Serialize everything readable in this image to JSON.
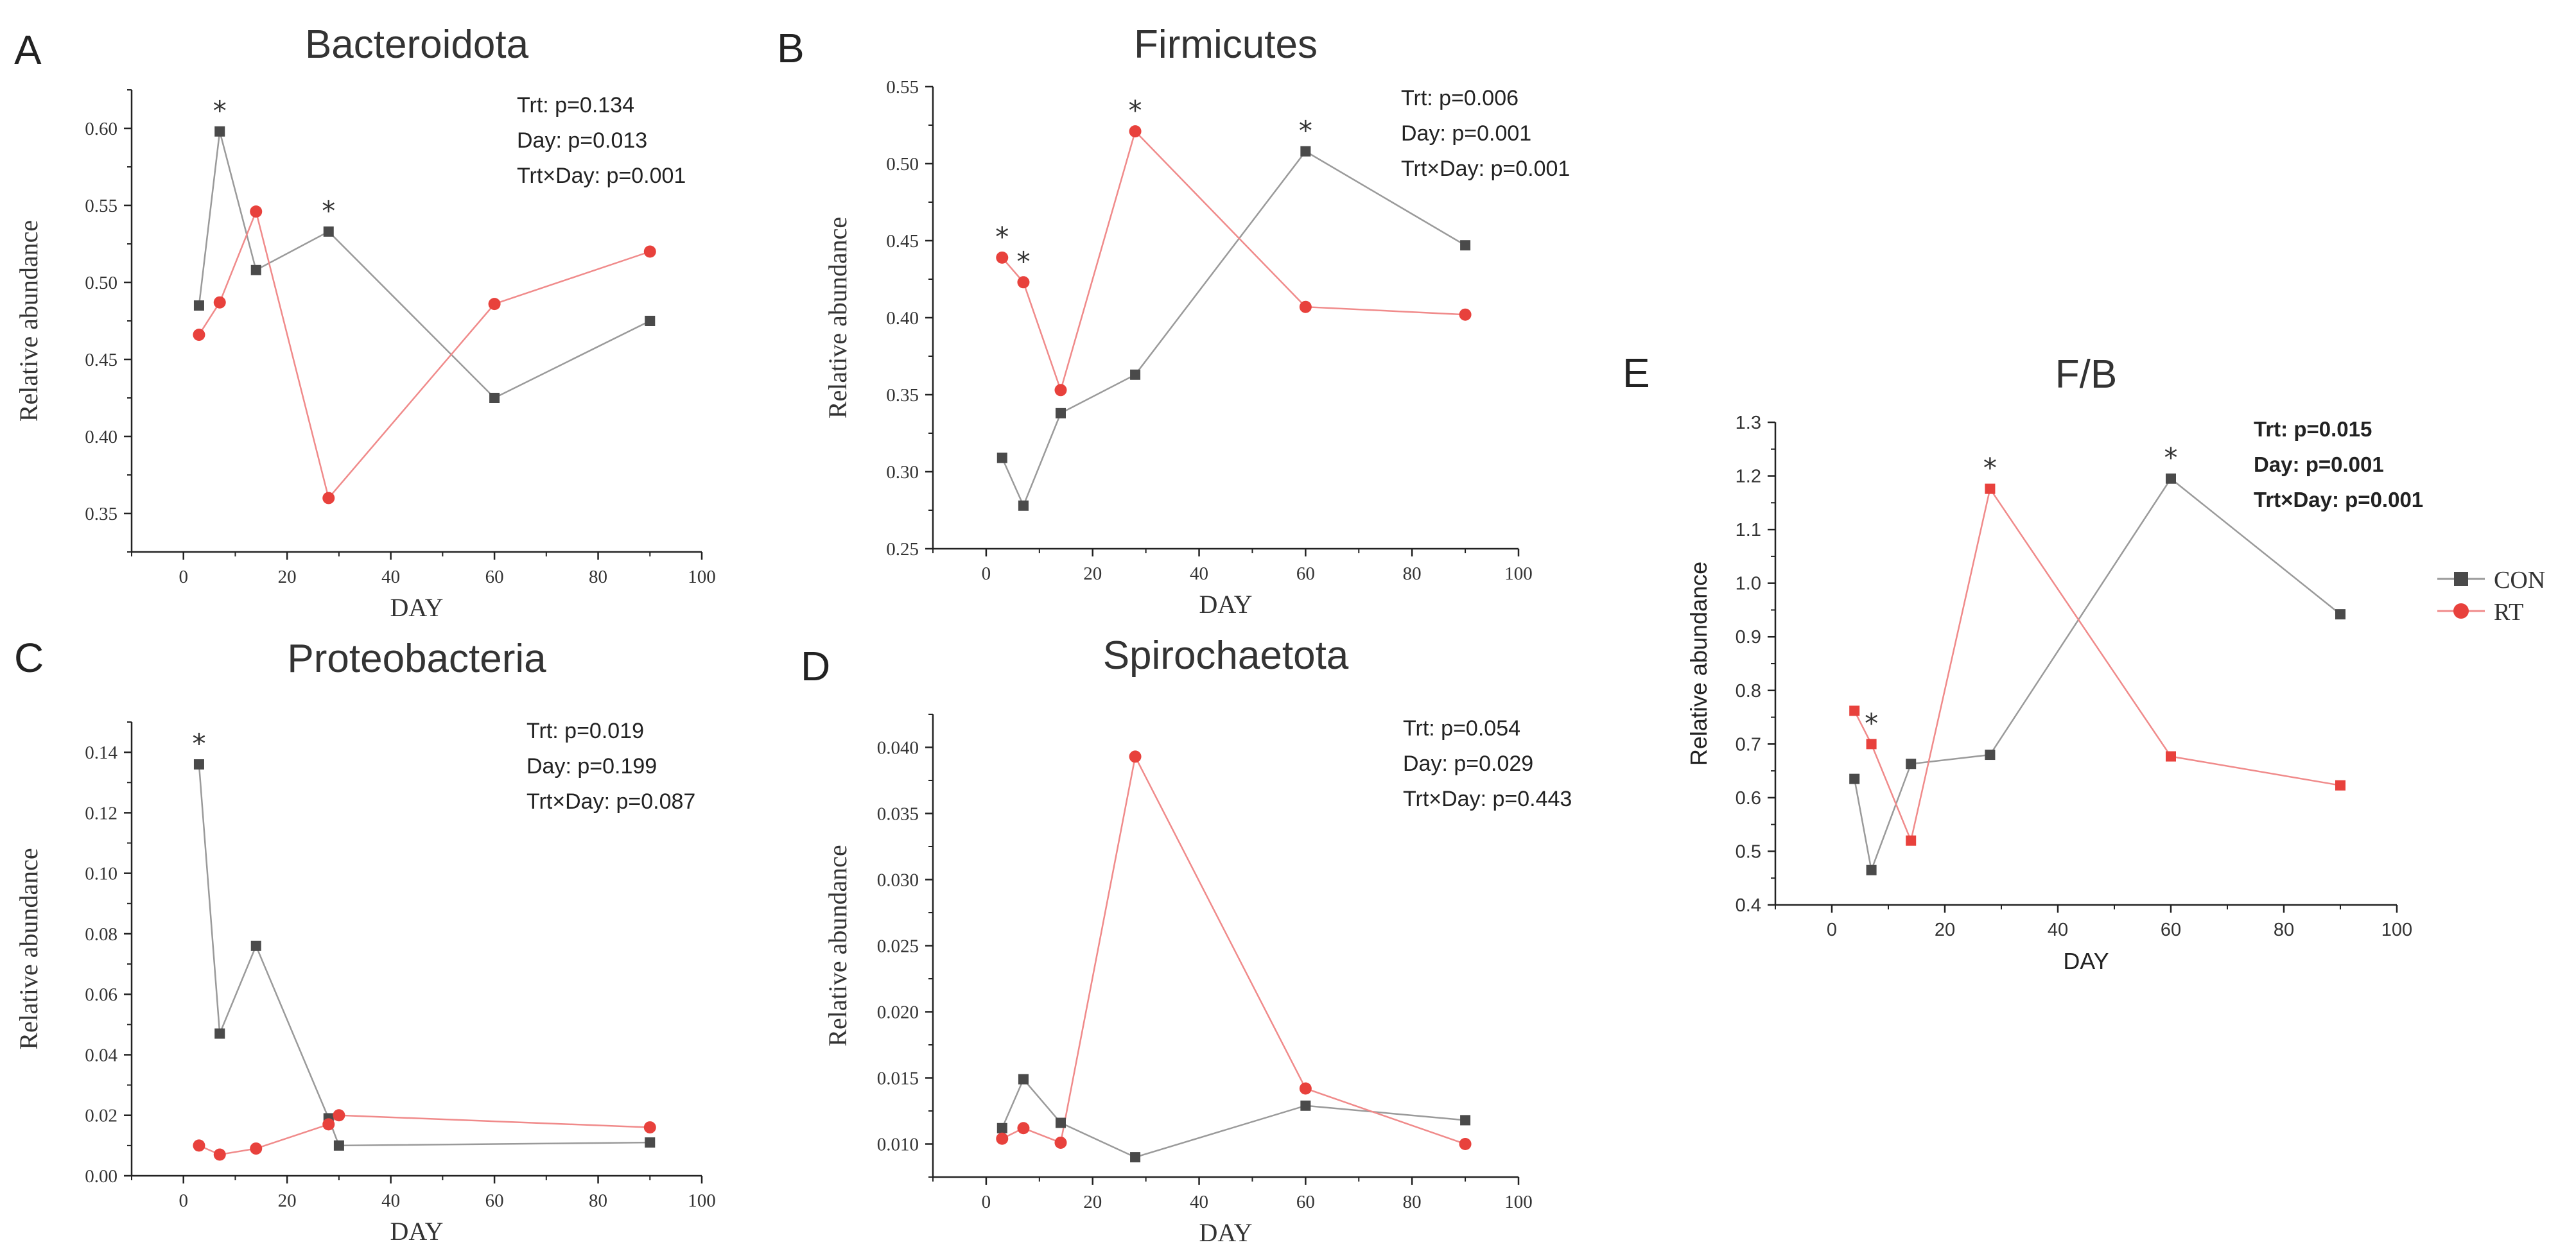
{
  "legend": {
    "con_label": "CON",
    "rt_label": "RT",
    "con_color": "#4a4a4a",
    "rt_color": "#e8413c",
    "con_line_color": "#9a9a9a",
    "rt_line_color": "#f08a8a"
  },
  "chart_data": [
    {
      "letter": "A",
      "type": "line",
      "title": "Bacteroidota",
      "xlabel": "DAY",
      "ylabel": "Relative abundance",
      "xticks": [
        0,
        20,
        40,
        60,
        80,
        100
      ],
      "xtick_labels": [
        "0",
        "20",
        "40",
        "60",
        "80",
        "100"
      ],
      "xlim": [
        -10,
        100
      ],
      "yticks": [
        0.35,
        0.4,
        0.45,
        0.5,
        0.55,
        0.6
      ],
      "ytick_labels": [
        "0.35",
        "0.40",
        "0.45",
        "0.50",
        "0.55",
        "0.60"
      ],
      "ylim": [
        0.325,
        0.625
      ],
      "stats": [
        "Trt: p=0.134",
        "Day: p=0.013",
        "Trt×Day: p=0.001"
      ],
      "series": [
        {
          "name": "CON",
          "x": [
            3,
            7,
            14,
            28,
            60,
            90
          ],
          "y": [
            0.485,
            0.598,
            0.508,
            0.533,
            0.425,
            0.475
          ]
        },
        {
          "name": "RT",
          "x": [
            3,
            7,
            14,
            28,
            60,
            90
          ],
          "y": [
            0.466,
            0.487,
            0.546,
            0.36,
            0.486,
            0.52
          ]
        }
      ],
      "stars": [
        {
          "x": 7,
          "y": 0.598
        },
        {
          "x": 28,
          "y": 0.533
        }
      ]
    },
    {
      "letter": "B",
      "type": "line",
      "title": "Firmicutes",
      "xlabel": "DAY",
      "ylabel": "Relative abundance",
      "xticks": [
        0,
        20,
        40,
        60,
        80,
        100
      ],
      "xtick_labels": [
        "0",
        "20",
        "40",
        "60",
        "80",
        "100"
      ],
      "xlim": [
        -10,
        100
      ],
      "yticks": [
        0.25,
        0.3,
        0.35,
        0.4,
        0.45,
        0.5,
        0.55
      ],
      "ytick_labels": [
        "0.25",
        "0.30",
        "0.35",
        "0.40",
        "0.45",
        "0.50",
        "0.55"
      ],
      "ylim": [
        0.25,
        0.55
      ],
      "stats": [
        "Trt: p=0.006",
        "Day: p=0.001",
        "Trt×Day: p=0.001"
      ],
      "series": [
        {
          "name": "CON",
          "x": [
            3,
            7,
            14,
            28,
            60,
            90
          ],
          "y": [
            0.309,
            0.278,
            0.338,
            0.363,
            0.508,
            0.447
          ]
        },
        {
          "name": "RT",
          "x": [
            3,
            7,
            14,
            28,
            60,
            90
          ],
          "y": [
            0.439,
            0.423,
            0.353,
            0.521,
            0.407,
            0.402
          ]
        }
      ],
      "stars": [
        {
          "x": 3,
          "y": 0.439
        },
        {
          "x": 7,
          "y": 0.423
        },
        {
          "x": 28,
          "y": 0.521
        },
        {
          "x": 60,
          "y": 0.508
        }
      ]
    },
    {
      "letter": "C",
      "type": "line",
      "title": "Proteobacteria",
      "xlabel": "DAY",
      "ylabel": "Relative abundance",
      "xticks": [
        0,
        20,
        40,
        60,
        80,
        100
      ],
      "xtick_labels": [
        "0",
        "20",
        "40",
        "60",
        "80",
        "100"
      ],
      "xlim": [
        -10,
        100
      ],
      "yticks": [
        0.0,
        0.02,
        0.04,
        0.06,
        0.08,
        0.1,
        0.12,
        0.14
      ],
      "ytick_labels": [
        "0.00",
        "0.02",
        "0.04",
        "0.06",
        "0.08",
        "0.10",
        "0.12",
        "0.14"
      ],
      "ylim": [
        0,
        0.15
      ],
      "stats": [
        "Trt: p=0.019",
        "Day: p=0.199",
        "Trt×Day: p=0.087"
      ],
      "series": [
        {
          "name": "CON",
          "x": [
            3,
            7,
            14,
            28,
            30,
            90
          ],
          "y": [
            0.136,
            0.047,
            0.076,
            0.019,
            0.01,
            0.011
          ]
        },
        {
          "name": "RT",
          "x": [
            3,
            7,
            14,
            28,
            30,
            90
          ],
          "y": [
            0.01,
            0.007,
            0.009,
            0.017,
            0.02,
            0.016
          ]
        }
      ],
      "stars": [
        {
          "x": 3,
          "y": 0.136
        }
      ]
    },
    {
      "letter": "D",
      "type": "line",
      "title": "Spirochaetota",
      "xlabel": "DAY",
      "ylabel": "Relative abundance",
      "xticks": [
        0,
        20,
        40,
        60,
        80,
        100
      ],
      "xtick_labels": [
        "0",
        "20",
        "40",
        "60",
        "80",
        "100"
      ],
      "xlim": [
        -10,
        100
      ],
      "yticks": [
        0.01,
        0.015,
        0.02,
        0.025,
        0.03,
        0.035,
        0.04
      ],
      "ytick_labels": [
        "0.010",
        "0.015",
        "0.020",
        "0.025",
        "0.030",
        "0.035",
        "0.040"
      ],
      "ylim": [
        0.0075,
        0.0425
      ],
      "stats": [
        "Trt: p=0.054",
        "Day: p=0.029",
        "Trt×Day: p=0.443"
      ],
      "series": [
        {
          "name": "CON",
          "x": [
            3,
            7,
            14,
            28,
            60,
            90
          ],
          "y": [
            0.0112,
            0.0149,
            0.0116,
            0.009,
            0.0129,
            0.0118
          ]
        },
        {
          "name": "RT",
          "x": [
            3,
            7,
            14,
            28,
            60,
            90
          ],
          "y": [
            0.0104,
            0.0112,
            0.0101,
            0.0393,
            0.0142,
            0.01
          ]
        }
      ],
      "stars": []
    },
    {
      "letter": "E",
      "type": "line",
      "title": "F/B",
      "xlabel": "DAY",
      "ylabel": "Relative abundance",
      "xticks": [
        0,
        20,
        40,
        60,
        80,
        100
      ],
      "xtick_labels": [
        "0",
        "20",
        "40",
        "60",
        "80",
        "100"
      ],
      "xlim": [
        -10,
        100
      ],
      "yticks": [
        0.4,
        0.5,
        0.6,
        0.7,
        0.8,
        0.9,
        1.0,
        1.1,
        1.2,
        1.3
      ],
      "ytick_labels": [
        "0.4",
        "0.5",
        "0.6",
        "0.7",
        "0.8",
        "0.9",
        "1.0",
        "1.1",
        "1.2",
        "1.3"
      ],
      "ylim": [
        0.4,
        1.3
      ],
      "stats": [
        "Trt: p=0.015",
        "Day: p=0.001",
        "Trt×Day: p=0.001"
      ],
      "series": [
        {
          "name": "CON",
          "x": [
            4,
            7,
            14,
            28,
            60,
            90
          ],
          "y": [
            0.635,
            0.465,
            0.663,
            0.68,
            1.195,
            0.942
          ]
        },
        {
          "name": "RT",
          "x": [
            4,
            7,
            14,
            28,
            60,
            90
          ],
          "y": [
            0.762,
            0.7,
            0.52,
            1.176,
            0.677,
            0.623
          ]
        }
      ],
      "stars": [
        {
          "x": 7,
          "y": 0.7
        },
        {
          "x": 28,
          "y": 1.176
        },
        {
          "x": 60,
          "y": 1.195
        }
      ]
    }
  ]
}
